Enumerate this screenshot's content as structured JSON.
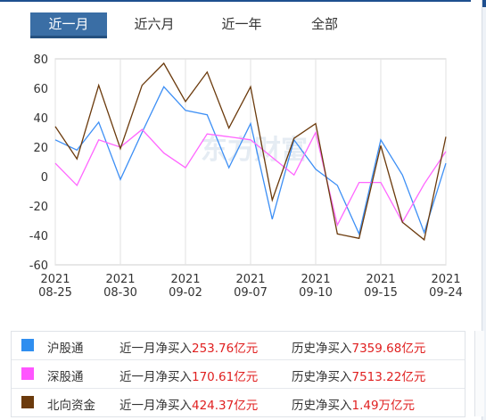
{
  "tabs": [
    {
      "label": "近一月",
      "active": true
    },
    {
      "label": "近六月",
      "active": false
    },
    {
      "label": "近一年",
      "active": false
    },
    {
      "label": "全部",
      "active": false
    }
  ],
  "watermark": "东方财富",
  "chart_data": {
    "type": "line",
    "title": "",
    "xlabel": "",
    "ylabel": "",
    "ylim": [
      -60,
      80
    ],
    "yticks": [
      -60,
      -40,
      -20,
      0,
      20,
      40,
      60,
      80
    ],
    "grid": "vertical",
    "x_tick_labels": [
      {
        "year": "2021",
        "date": "08-25",
        "index": 0
      },
      {
        "year": "2021",
        "date": "08-30",
        "index": 3
      },
      {
        "year": "2021",
        "date": "09-02",
        "index": 6
      },
      {
        "year": "2021",
        "date": "09-07",
        "index": 9
      },
      {
        "year": "2021",
        "date": "09-10",
        "index": 12
      },
      {
        "year": "2021",
        "date": "09-15",
        "index": 15
      },
      {
        "year": "2021",
        "date": "09-24",
        "index": 18
      }
    ],
    "point_count": 19,
    "series": [
      {
        "name": "沪股通",
        "color": "#3d8ff5",
        "values": [
          25,
          18,
          37,
          -2,
          30,
          61,
          45,
          42,
          6,
          36,
          -29,
          25,
          5,
          -6,
          -39,
          25,
          1,
          -38,
          9
        ]
      },
      {
        "name": "深股通",
        "color": "#ff66ff",
        "values": [
          9,
          -6,
          25,
          20,
          32,
          16,
          6,
          29,
          27,
          25,
          13,
          1,
          30,
          -33,
          -4,
          -4,
          -31,
          -5,
          17
        ]
      },
      {
        "name": "北向资金",
        "color": "#6b3a0c",
        "values": [
          34,
          12,
          62,
          19,
          62,
          77,
          51,
          71,
          33,
          61,
          -16,
          26,
          36,
          -39,
          -42,
          21,
          -31,
          -43,
          27
        ]
      }
    ]
  },
  "legend": [
    {
      "name": "沪股通",
      "color": "#2f8ef0",
      "recent_label": "近一月净买入",
      "recent_value": "253.76亿元",
      "hist_label": "历史净买入",
      "hist_value": "7359.68亿元"
    },
    {
      "name": "深股通",
      "color": "#ff55ff",
      "recent_label": "近一月净买入",
      "recent_value": "170.61亿元",
      "hist_label": "历史净买入",
      "hist_value": "7513.22亿元"
    },
    {
      "name": "北向资金",
      "color": "#6b3a0c",
      "recent_label": "近一月净买入",
      "recent_value": "424.37亿元",
      "hist_label": "历史净买入",
      "hist_value": "1.49万亿元"
    }
  ]
}
